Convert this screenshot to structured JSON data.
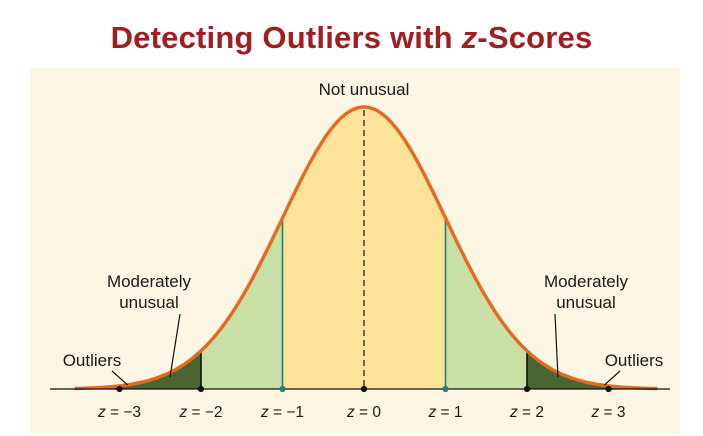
{
  "title": {
    "prefix": "Detecting Outliers with ",
    "variable": "z",
    "suffix": "-Scores"
  },
  "colors": {
    "title": "#a11d21",
    "background_panel": "#fdf6e5",
    "curve": "#e46a1f",
    "not_unusual_fill": "#fde29a",
    "moderately_unusual_fill": "#c8dfa5",
    "outlier_fill": "#4b6530",
    "inner_dividers": "#1f8078",
    "outer_dividers": "#111111",
    "axis": "#111111"
  },
  "regions": {
    "center": "Not unusual",
    "moderate_left": [
      "Moderately",
      "unusual"
    ],
    "moderate_right": [
      "Moderately",
      "unusual"
    ],
    "outliers_left": "Outliers",
    "outliers_right": "Outliers"
  },
  "ticks": [
    {
      "z": -3,
      "var": "z",
      "rest": " = −3"
    },
    {
      "z": -2,
      "var": "z",
      "rest": " = −2"
    },
    {
      "z": -1,
      "var": "z",
      "rest": " = −1"
    },
    {
      "z": 0,
      "var": "z",
      "rest": " = 0"
    },
    {
      "z": 1,
      "var": "z",
      "rest": " = 1"
    },
    {
      "z": 2,
      "var": "z",
      "rest": " = 2"
    },
    {
      "z": 3,
      "var": "z",
      "rest": " = 3"
    }
  ],
  "chart_data": {
    "type": "area",
    "distribution": "standard normal",
    "x_range": [
      -3.55,
      3.6
    ],
    "bands": [
      {
        "from": -2,
        "to": -1,
        "category": "moderately unusual"
      },
      {
        "from": -1,
        "to": 1,
        "category": "not unusual"
      },
      {
        "from": 1,
        "to": 2,
        "category": "moderately unusual"
      },
      {
        "from": -3.55,
        "to": -2,
        "category": "outliers"
      },
      {
        "from": 2,
        "to": 3.6,
        "category": "outliers"
      }
    ]
  }
}
